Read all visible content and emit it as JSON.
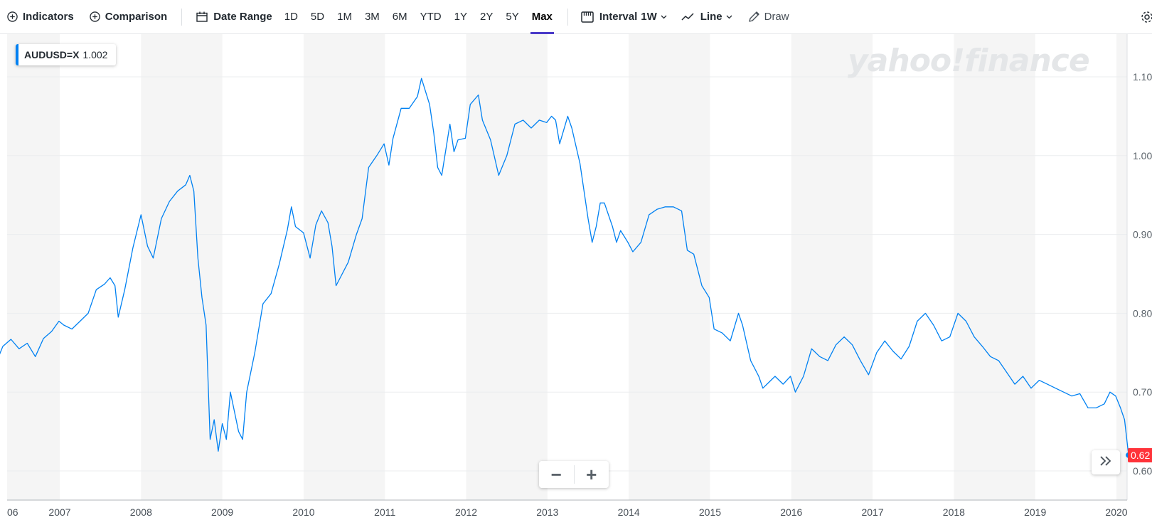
{
  "toolbar": {
    "indicators": "Indicators",
    "comparison": "Comparison",
    "date_range": "Date Range",
    "ranges": [
      "1D",
      "5D",
      "1M",
      "3M",
      "6M",
      "YTD",
      "1Y",
      "2Y",
      "5Y",
      "Max"
    ],
    "active_range": "Max",
    "interval_label": "Interval",
    "interval_value": "1W",
    "chart_type": "Line",
    "draw": "Draw"
  },
  "legend": {
    "symbol": "AUDUSD=X",
    "value": "1.002"
  },
  "zoom": {
    "minus": "−",
    "plus": "+"
  },
  "last_price_label": "0.62",
  "colors": {
    "line": "#0081f2",
    "band": "#f5f5f5",
    "grid": "#ebedef",
    "last_price": "#ff333a",
    "active_tab_underline": "#4a3ac8"
  },
  "chart_data": {
    "type": "line",
    "series": [
      {
        "name": "AUDUSD=X",
        "points": [
          [
            2006.0,
            0.761
          ],
          [
            2006.1,
            0.754
          ],
          [
            2006.2,
            0.733
          ],
          [
            2006.3,
            0.758
          ],
          [
            2006.4,
            0.767
          ],
          [
            2006.5,
            0.755
          ],
          [
            2006.6,
            0.762
          ],
          [
            2006.7,
            0.745
          ],
          [
            2006.8,
            0.768
          ],
          [
            2006.9,
            0.777
          ],
          [
            2006.99,
            0.79
          ],
          [
            2007.05,
            0.785
          ],
          [
            2007.15,
            0.78
          ],
          [
            2007.25,
            0.79
          ],
          [
            2007.35,
            0.8
          ],
          [
            2007.45,
            0.83
          ],
          [
            2007.55,
            0.837
          ],
          [
            2007.62,
            0.845
          ],
          [
            2007.68,
            0.835
          ],
          [
            2007.72,
            0.795
          ],
          [
            2007.8,
            0.83
          ],
          [
            2007.9,
            0.883
          ],
          [
            2008.0,
            0.925
          ],
          [
            2008.08,
            0.885
          ],
          [
            2008.15,
            0.87
          ],
          [
            2008.25,
            0.92
          ],
          [
            2008.35,
            0.942
          ],
          [
            2008.45,
            0.955
          ],
          [
            2008.55,
            0.963
          ],
          [
            2008.6,
            0.975
          ],
          [
            2008.65,
            0.955
          ],
          [
            2008.7,
            0.87
          ],
          [
            2008.75,
            0.82
          ],
          [
            2008.8,
            0.785
          ],
          [
            2008.85,
            0.64
          ],
          [
            2008.9,
            0.665
          ],
          [
            2008.95,
            0.625
          ],
          [
            2009.0,
            0.66
          ],
          [
            2009.05,
            0.64
          ],
          [
            2009.1,
            0.7
          ],
          [
            2009.2,
            0.65
          ],
          [
            2009.25,
            0.64
          ],
          [
            2009.3,
            0.7
          ],
          [
            2009.4,
            0.75
          ],
          [
            2009.5,
            0.812
          ],
          [
            2009.6,
            0.825
          ],
          [
            2009.7,
            0.862
          ],
          [
            2009.8,
            0.906
          ],
          [
            2009.85,
            0.935
          ],
          [
            2009.9,
            0.91
          ],
          [
            2010.0,
            0.902
          ],
          [
            2010.08,
            0.87
          ],
          [
            2010.15,
            0.912
          ],
          [
            2010.22,
            0.93
          ],
          [
            2010.3,
            0.915
          ],
          [
            2010.35,
            0.885
          ],
          [
            2010.4,
            0.835
          ],
          [
            2010.45,
            0.845
          ],
          [
            2010.55,
            0.865
          ],
          [
            2010.65,
            0.9
          ],
          [
            2010.72,
            0.92
          ],
          [
            2010.8,
            0.985
          ],
          [
            2010.9,
            1.0
          ],
          [
            2010.99,
            1.015
          ],
          [
            2011.05,
            0.988
          ],
          [
            2011.1,
            1.022
          ],
          [
            2011.2,
            1.06
          ],
          [
            2011.3,
            1.06
          ],
          [
            2011.4,
            1.075
          ],
          [
            2011.45,
            1.098
          ],
          [
            2011.55,
            1.065
          ],
          [
            2011.6,
            1.03
          ],
          [
            2011.65,
            0.985
          ],
          [
            2011.7,
            0.975
          ],
          [
            2011.8,
            1.04
          ],
          [
            2011.85,
            1.005
          ],
          [
            2011.9,
            1.02
          ],
          [
            2011.99,
            1.022
          ],
          [
            2012.05,
            1.065
          ],
          [
            2012.15,
            1.077
          ],
          [
            2012.2,
            1.045
          ],
          [
            2012.3,
            1.02
          ],
          [
            2012.4,
            0.975
          ],
          [
            2012.5,
            1.0
          ],
          [
            2012.6,
            1.04
          ],
          [
            2012.7,
            1.045
          ],
          [
            2012.8,
            1.035
          ],
          [
            2012.9,
            1.045
          ],
          [
            2012.99,
            1.042
          ],
          [
            2013.05,
            1.05
          ],
          [
            2013.1,
            1.045
          ],
          [
            2013.15,
            1.015
          ],
          [
            2013.25,
            1.05
          ],
          [
            2013.3,
            1.035
          ],
          [
            2013.4,
            0.99
          ],
          [
            2013.5,
            0.92
          ],
          [
            2013.55,
            0.89
          ],
          [
            2013.6,
            0.91
          ],
          [
            2013.65,
            0.94
          ],
          [
            2013.7,
            0.94
          ],
          [
            2013.8,
            0.91
          ],
          [
            2013.85,
            0.89
          ],
          [
            2013.9,
            0.905
          ],
          [
            2013.99,
            0.89
          ],
          [
            2014.05,
            0.878
          ],
          [
            2014.15,
            0.89
          ],
          [
            2014.25,
            0.925
          ],
          [
            2014.35,
            0.932
          ],
          [
            2014.45,
            0.935
          ],
          [
            2014.55,
            0.935
          ],
          [
            2014.65,
            0.93
          ],
          [
            2014.72,
            0.88
          ],
          [
            2014.8,
            0.875
          ],
          [
            2014.9,
            0.835
          ],
          [
            2014.99,
            0.82
          ],
          [
            2015.05,
            0.78
          ],
          [
            2015.15,
            0.775
          ],
          [
            2015.25,
            0.765
          ],
          [
            2015.35,
            0.8
          ],
          [
            2015.4,
            0.785
          ],
          [
            2015.5,
            0.74
          ],
          [
            2015.6,
            0.72
          ],
          [
            2015.65,
            0.705
          ],
          [
            2015.7,
            0.71
          ],
          [
            2015.8,
            0.72
          ],
          [
            2015.9,
            0.71
          ],
          [
            2015.99,
            0.72
          ],
          [
            2016.05,
            0.7
          ],
          [
            2016.15,
            0.72
          ],
          [
            2016.25,
            0.755
          ],
          [
            2016.35,
            0.745
          ],
          [
            2016.45,
            0.74
          ],
          [
            2016.55,
            0.76
          ],
          [
            2016.65,
            0.77
          ],
          [
            2016.75,
            0.76
          ],
          [
            2016.85,
            0.74
          ],
          [
            2016.95,
            0.722
          ],
          [
            2017.05,
            0.75
          ],
          [
            2017.15,
            0.765
          ],
          [
            2017.25,
            0.752
          ],
          [
            2017.35,
            0.742
          ],
          [
            2017.45,
            0.758
          ],
          [
            2017.55,
            0.79
          ],
          [
            2017.65,
            0.8
          ],
          [
            2017.75,
            0.785
          ],
          [
            2017.85,
            0.765
          ],
          [
            2017.95,
            0.77
          ],
          [
            2018.05,
            0.8
          ],
          [
            2018.15,
            0.79
          ],
          [
            2018.25,
            0.77
          ],
          [
            2018.35,
            0.758
          ],
          [
            2018.45,
            0.745
          ],
          [
            2018.55,
            0.74
          ],
          [
            2018.65,
            0.725
          ],
          [
            2018.75,
            0.71
          ],
          [
            2018.85,
            0.72
          ],
          [
            2018.95,
            0.705
          ],
          [
            2019.05,
            0.715
          ],
          [
            2019.15,
            0.71
          ],
          [
            2019.25,
            0.705
          ],
          [
            2019.35,
            0.7
          ],
          [
            2019.45,
            0.695
          ],
          [
            2019.55,
            0.698
          ],
          [
            2019.65,
            0.68
          ],
          [
            2019.75,
            0.68
          ],
          [
            2019.85,
            0.685
          ],
          [
            2019.92,
            0.7
          ],
          [
            2019.99,
            0.695
          ],
          [
            2020.05,
            0.68
          ],
          [
            2020.1,
            0.665
          ],
          [
            2020.15,
            0.62
          ]
        ]
      }
    ],
    "xticks": [
      "06",
      "2007",
      "2008",
      "2009",
      "2010",
      "2011",
      "2012",
      "2013",
      "2014",
      "2015",
      "2016",
      "2017",
      "2018",
      "2019",
      "2020"
    ],
    "xlim": [
      2006.0,
      2020.2
    ],
    "yticks": [
      "1.10",
      "1.00",
      "0.90",
      "0.80",
      "0.70",
      "0.60"
    ],
    "ylim": [
      0.565,
      1.13
    ],
    "grid": true,
    "title": "",
    "xlabel": "",
    "ylabel": ""
  }
}
